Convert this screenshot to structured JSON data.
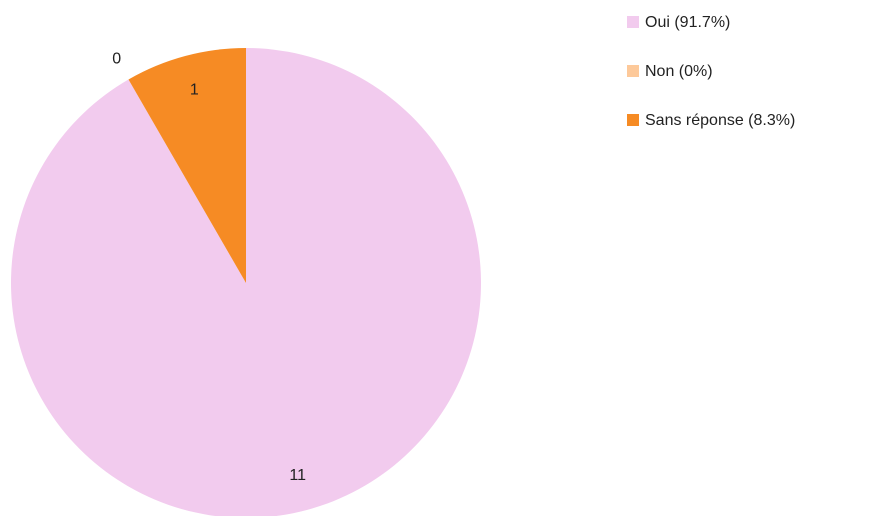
{
  "chart_data": {
    "type": "pie",
    "categories": [
      "Oui (91.7%)",
      "Non (0%)",
      "Sans réponse (8.3%)"
    ],
    "values": [
      11,
      0,
      1
    ],
    "colors": [
      "#f2cbee",
      "#fdc99a",
      "#f68b24"
    ],
    "legend": "top-right"
  }
}
